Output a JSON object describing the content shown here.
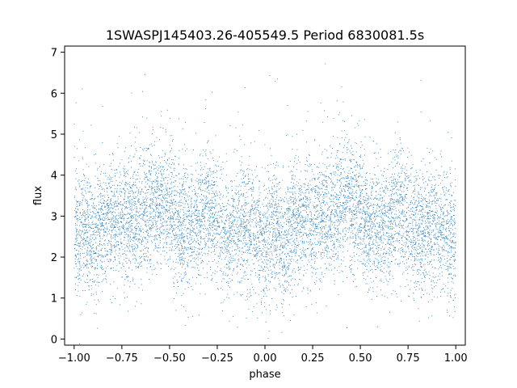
{
  "chart_data": {
    "type": "scatter",
    "title": "1SWASPJ145403.26-405549.5 Period 6830081.5s",
    "xlabel": "phase",
    "ylabel": "flux",
    "xlim": [
      -1.05,
      1.05
    ],
    "ylim": [
      -0.15,
      7.15
    ],
    "xticks": [
      -1.0,
      -0.75,
      -0.5,
      -0.25,
      0.0,
      0.25,
      0.5,
      0.75,
      1.0
    ],
    "xtick_labels": [
      "−1.00",
      "−0.75",
      "−0.50",
      "−0.25",
      "0.00",
      "0.25",
      "0.50",
      "0.75",
      "1.00"
    ],
    "yticks": [
      0,
      1,
      2,
      3,
      4,
      5,
      6,
      7
    ],
    "ytick_labels": [
      "0",
      "1",
      "2",
      "3",
      "4",
      "5",
      "6",
      "7"
    ],
    "grid": false,
    "marker_color": "#1f77b4",
    "series": [
      {
        "phase_profile": [
          [
            -1.0,
            2.3
          ],
          [
            -0.95,
            2.8
          ],
          [
            -0.9,
            2.3
          ],
          [
            -0.85,
            2.9
          ],
          [
            -0.8,
            2.9
          ],
          [
            -0.75,
            2.8
          ],
          [
            -0.7,
            3.0
          ],
          [
            -0.65,
            3.0
          ],
          [
            -0.6,
            3.3
          ],
          [
            -0.55,
            3.3
          ],
          [
            -0.5,
            3.2
          ],
          [
            -0.45,
            2.6
          ],
          [
            -0.4,
            2.6
          ],
          [
            -0.35,
            2.9
          ],
          [
            -0.3,
            3.3
          ],
          [
            -0.25,
            2.9
          ],
          [
            -0.2,
            2.5
          ],
          [
            -0.15,
            2.7
          ],
          [
            -0.1,
            2.8
          ],
          [
            -0.05,
            2.6
          ],
          [
            0.0,
            2.3
          ],
          [
            0.05,
            2.8
          ],
          [
            0.1,
            2.3
          ],
          [
            0.15,
            2.9
          ],
          [
            0.2,
            2.9
          ],
          [
            0.25,
            2.8
          ],
          [
            0.3,
            3.0
          ],
          [
            0.35,
            3.0
          ],
          [
            0.4,
            3.3
          ],
          [
            0.45,
            3.3
          ],
          [
            0.5,
            3.2
          ],
          [
            0.55,
            2.6
          ],
          [
            0.6,
            2.6
          ],
          [
            0.65,
            2.9
          ],
          [
            0.7,
            3.3
          ],
          [
            0.75,
            2.9
          ],
          [
            0.8,
            2.5
          ],
          [
            0.85,
            2.7
          ],
          [
            0.9,
            2.8
          ],
          [
            0.95,
            2.6
          ],
          [
            1.0,
            2.3
          ]
        ],
        "scatter_spread": 0.75,
        "point_count": 9000
      }
    ]
  }
}
